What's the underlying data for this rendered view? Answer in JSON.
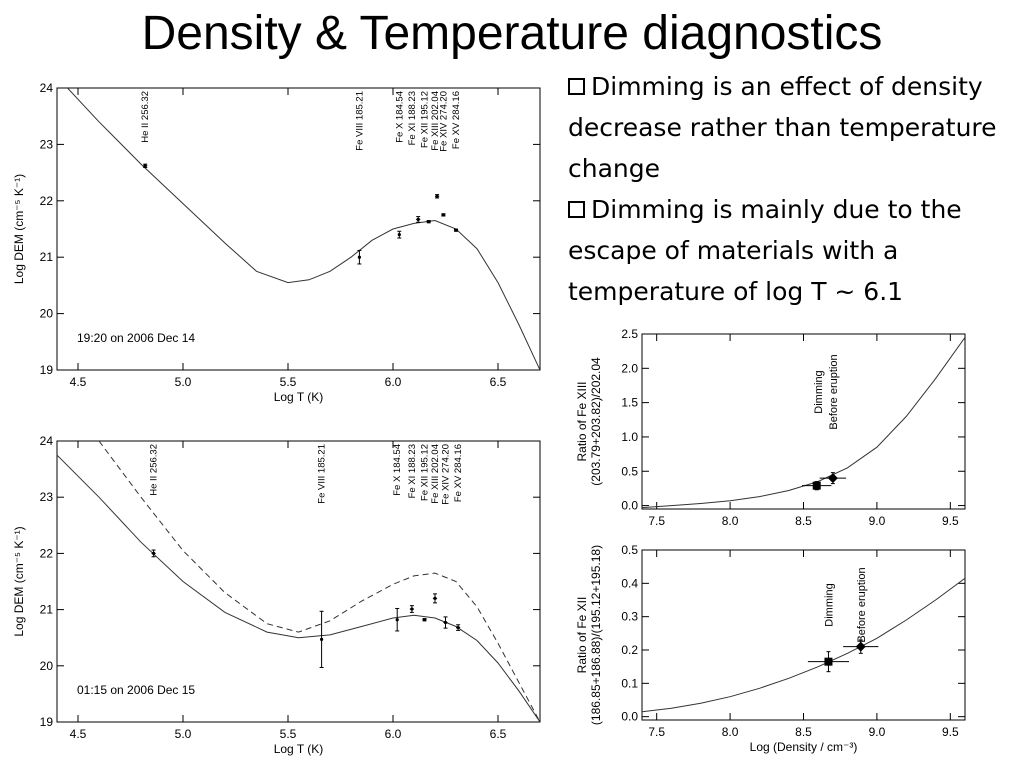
{
  "slide": {
    "title": "Density & Temperature diagnostics",
    "bullets": [
      "Dimming is an effect of density decrease rather than temperature change",
      "Dimming is mainly due to the escape of materials with a temperature of log T ~ 6.1"
    ]
  },
  "chart_data": [
    {
      "type": "line",
      "xlabel": "Log T (K)",
      "ylabel": "Log DEM (cm⁻⁵ K⁻¹)",
      "xlim": [
        4.4,
        6.7
      ],
      "ylim": [
        19,
        24
      ],
      "xticks": [
        "4.5",
        "5.0",
        "5.5",
        "6.0",
        "6.5"
      ],
      "yticks": [
        "19",
        "20",
        "21",
        "22",
        "23",
        "24"
      ],
      "annotation": "19:20 on 2006 Dec 14",
      "line_labels": [
        {
          "text": "He II 256.32",
          "x": 4.82
        },
        {
          "text": "Fe VIII 185.21",
          "x": 5.84
        },
        {
          "text": "Fe X 184.54",
          "x": 6.03
        },
        {
          "text": "Fe XI 188.23",
          "x": 6.09
        },
        {
          "text": "Fe XII 195.12",
          "x": 6.15
        },
        {
          "text": "Fe XIII 202.04",
          "x": 6.2
        },
        {
          "text": "Fe XIV 274.20",
          "x": 6.24
        },
        {
          "text": "Fe XV 284.16",
          "x": 6.3
        }
      ],
      "series": [
        {
          "style": "solid",
          "x": [
            4.45,
            4.6,
            4.8,
            5.0,
            5.2,
            5.35,
            5.5,
            5.6,
            5.7,
            5.8,
            5.9,
            6.0,
            6.1,
            6.2,
            6.3,
            6.4,
            6.5,
            6.6,
            6.7
          ],
          "y": [
            24.0,
            23.4,
            22.65,
            21.95,
            21.25,
            20.75,
            20.55,
            20.6,
            20.75,
            21.0,
            21.3,
            21.5,
            21.6,
            21.65,
            21.5,
            21.15,
            20.55,
            19.8,
            19.0
          ]
        }
      ],
      "points": [
        {
          "x": 4.82,
          "y": 22.62,
          "xerr": 0.01,
          "yerr": 0.03
        },
        {
          "x": 5.84,
          "y": 21.0,
          "xerr": 0.0,
          "yerr": 0.12
        },
        {
          "x": 6.03,
          "y": 21.4,
          "xerr": 0.0,
          "yerr": 0.06
        },
        {
          "x": 6.12,
          "y": 21.67,
          "xerr": 0.01,
          "yerr": 0.05
        },
        {
          "x": 6.17,
          "y": 21.63,
          "xerr": 0.01,
          "yerr": 0.02
        },
        {
          "x": 6.21,
          "y": 22.08,
          "xerr": 0.01,
          "yerr": 0.03
        },
        {
          "x": 6.24,
          "y": 21.75,
          "xerr": 0.01,
          "yerr": 0.02
        },
        {
          "x": 6.3,
          "y": 21.48,
          "xerr": 0.01,
          "yerr": 0.02
        }
      ]
    },
    {
      "type": "line",
      "xlabel": "Log T (K)",
      "ylabel": "Log DEM (cm⁻⁵ K⁻¹)",
      "xlim": [
        4.4,
        6.7
      ],
      "ylim": [
        19,
        24
      ],
      "xticks": [
        "4.5",
        "5.0",
        "5.5",
        "6.0",
        "6.5"
      ],
      "yticks": [
        "19",
        "20",
        "21",
        "22",
        "23",
        "24"
      ],
      "annotation": "01:15 on 2006 Dec 15",
      "line_labels": [
        {
          "text": "He II 256.32",
          "x": 4.86
        },
        {
          "text": "Fe VIII 185.21",
          "x": 5.66
        },
        {
          "text": "Fe X 184.54",
          "x": 6.02
        },
        {
          "text": "Fe XI 188.23",
          "x": 6.09
        },
        {
          "text": "Fe XII 195.12",
          "x": 6.15
        },
        {
          "text": "Fe XIII 202.04",
          "x": 6.2
        },
        {
          "text": "Fe XIV 274.20",
          "x": 6.25
        },
        {
          "text": "Fe XV 284.16",
          "x": 6.31
        }
      ],
      "series": [
        {
          "style": "solid",
          "x": [
            4.4,
            4.6,
            4.8,
            5.0,
            5.2,
            5.4,
            5.55,
            5.7,
            5.85,
            6.0,
            6.1,
            6.2,
            6.3,
            6.4,
            6.5,
            6.6,
            6.7
          ],
          "y": [
            23.75,
            23.0,
            22.2,
            21.5,
            20.95,
            20.6,
            20.5,
            20.55,
            20.7,
            20.85,
            20.9,
            20.85,
            20.7,
            20.45,
            20.05,
            19.55,
            19.0
          ]
        },
        {
          "style": "dashed",
          "x": [
            4.6,
            4.8,
            5.0,
            5.2,
            5.4,
            5.55,
            5.7,
            5.85,
            6.0,
            6.1,
            6.2,
            6.3,
            6.4,
            6.5,
            6.6,
            6.7
          ],
          "y": [
            24.0,
            23.0,
            22.05,
            21.3,
            20.75,
            20.6,
            20.8,
            21.15,
            21.45,
            21.6,
            21.65,
            21.5,
            21.05,
            20.4,
            19.7,
            19.0
          ]
        }
      ],
      "points": [
        {
          "x": 4.86,
          "y": 22.0,
          "xerr": 0.01,
          "yerr": 0.06
        },
        {
          "x": 5.66,
          "y": 20.47,
          "xerr": 0.0,
          "yerr": 0.5
        },
        {
          "x": 6.02,
          "y": 20.82,
          "xerr": 0.0,
          "yerr": 0.2
        },
        {
          "x": 6.09,
          "y": 21.01,
          "xerr": 0.01,
          "yerr": 0.06
        },
        {
          "x": 6.15,
          "y": 20.82,
          "xerr": 0.01,
          "yerr": 0.02
        },
        {
          "x": 6.2,
          "y": 21.2,
          "xerr": 0.01,
          "yerr": 0.08
        },
        {
          "x": 6.25,
          "y": 20.77,
          "xerr": 0.01,
          "yerr": 0.1
        },
        {
          "x": 6.31,
          "y": 20.68,
          "xerr": 0.01,
          "yerr": 0.05
        }
      ]
    },
    {
      "type": "line",
      "xlabel": "",
      "ylabel": "Ratio of Fe XIII\n(203.79+203.82)/202.04",
      "xlim": [
        7.4,
        9.6
      ],
      "ylim": [
        -0.05,
        2.5
      ],
      "xticks": [
        "7.5",
        "8.0",
        "8.5",
        "9.0",
        "9.5"
      ],
      "yticks": [
        "0.0",
        "0.5",
        "1.0",
        "1.5",
        "2.0",
        "2.5"
      ],
      "yticks_values": [
        0.0,
        0.5,
        1.0,
        1.5,
        2.0,
        2.5
      ],
      "markers": [
        {
          "text": "Dimming",
          "x": 8.6
        },
        {
          "text": "Before eruption",
          "x": 8.7
        }
      ],
      "series": [
        {
          "style": "solid",
          "x": [
            7.4,
            7.6,
            7.8,
            8.0,
            8.2,
            8.4,
            8.6,
            8.8,
            9.0,
            9.2,
            9.4,
            9.6
          ],
          "y": [
            -0.03,
            0.0,
            0.03,
            0.07,
            0.13,
            0.22,
            0.35,
            0.55,
            0.85,
            1.3,
            1.85,
            2.45
          ]
        }
      ],
      "points": [
        {
          "x": 8.59,
          "y": 0.29,
          "xerr": 0.1,
          "yerr": 0.06,
          "marker": "square"
        },
        {
          "x": 8.7,
          "y": 0.4,
          "xerr": 0.09,
          "yerr": 0.08,
          "marker": "diamond"
        }
      ]
    },
    {
      "type": "line",
      "xlabel": "Log (Density / cm⁻³)",
      "ylabel": "Ratio of Fe XII\n(186.85+186.88)/(195.12+195.18)",
      "xlim": [
        7.4,
        9.6
      ],
      "ylim": [
        -0.01,
        0.5
      ],
      "xticks": [
        "7.5",
        "8.0",
        "8.5",
        "9.0",
        "9.5"
      ],
      "yticks": [
        "0.0",
        "0.1",
        "0.2",
        "0.3",
        "0.4",
        "0.5"
      ],
      "yticks_values": [
        0.0,
        0.1,
        0.2,
        0.3,
        0.4,
        0.5
      ],
      "markers": [
        {
          "text": "Dimming",
          "x": 8.67
        },
        {
          "text": "Before eruption",
          "x": 8.89
        }
      ],
      "series": [
        {
          "style": "solid",
          "x": [
            7.4,
            7.6,
            7.8,
            8.0,
            8.2,
            8.4,
            8.6,
            8.8,
            9.0,
            9.2,
            9.4,
            9.6
          ],
          "y": [
            0.015,
            0.025,
            0.04,
            0.06,
            0.085,
            0.115,
            0.15,
            0.19,
            0.235,
            0.29,
            0.35,
            0.415
          ]
        }
      ],
      "points": [
        {
          "x": 8.67,
          "y": 0.165,
          "xerr": 0.14,
          "yerr": 0.03,
          "marker": "square"
        },
        {
          "x": 8.89,
          "y": 0.21,
          "xerr": 0.12,
          "yerr": 0.02,
          "marker": "diamond"
        }
      ]
    }
  ]
}
